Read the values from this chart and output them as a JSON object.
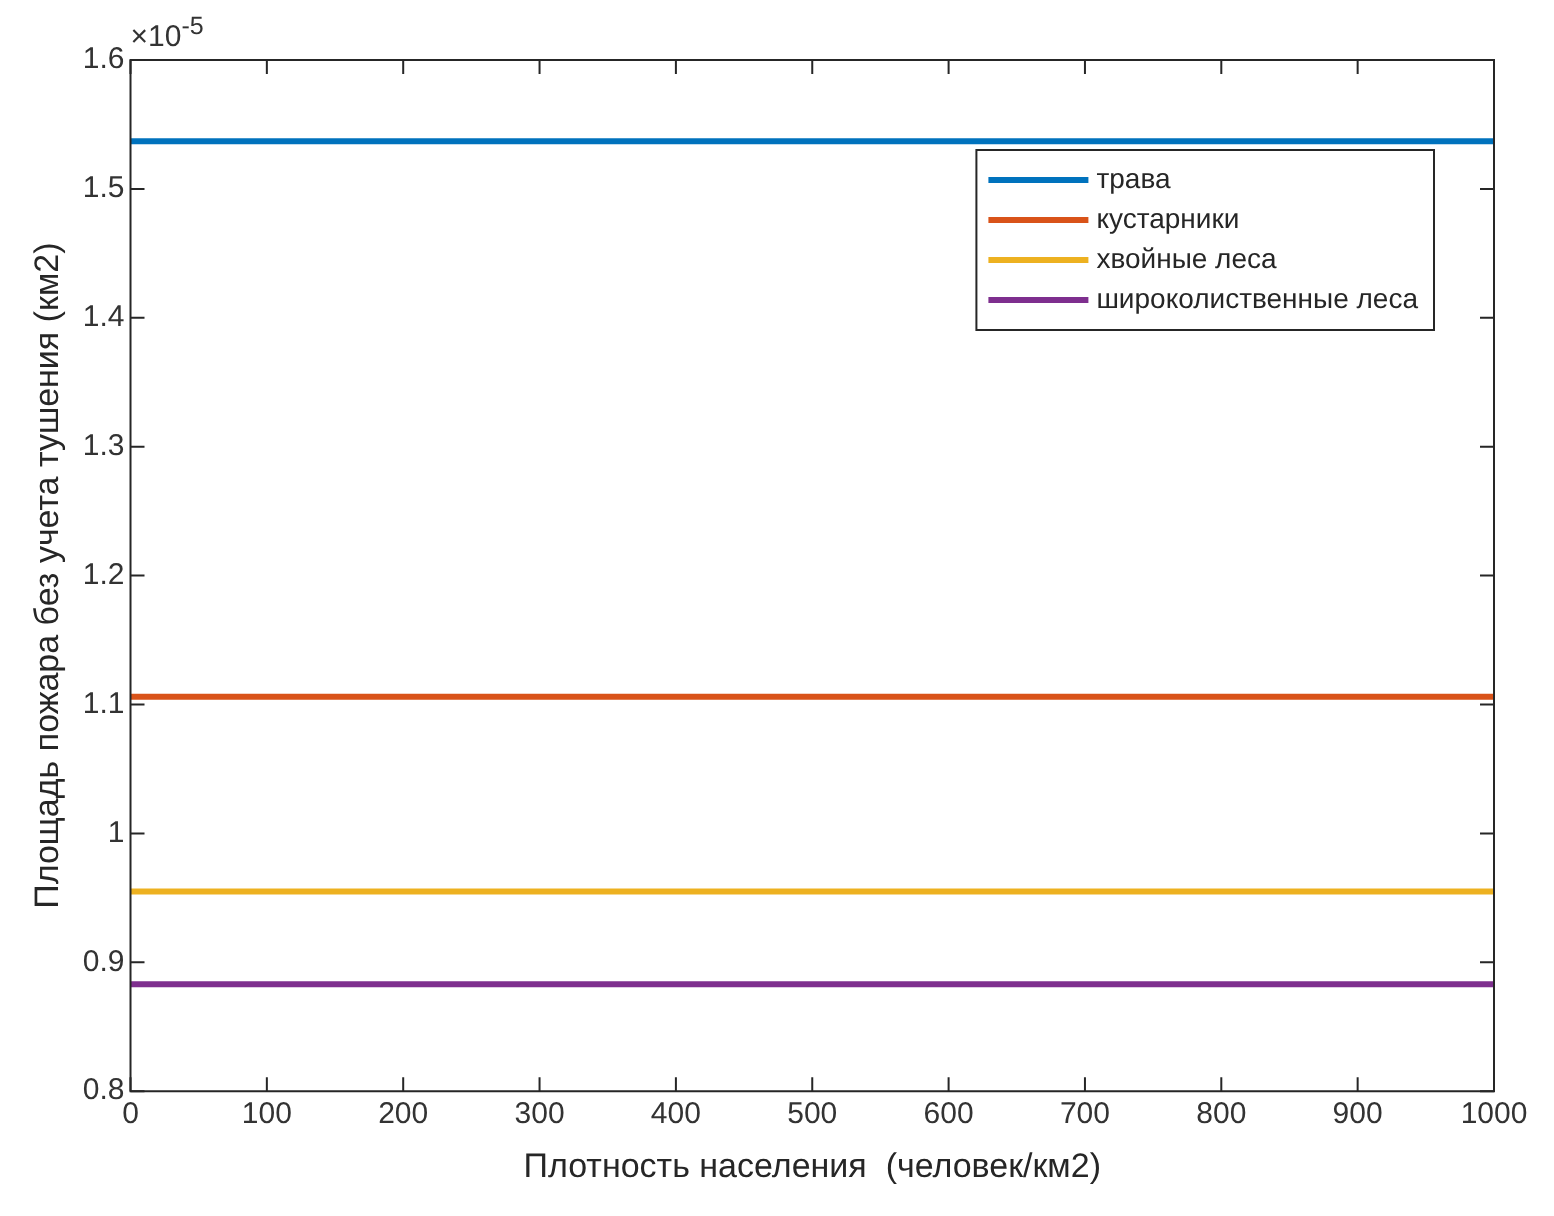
{
  "chart_data": {
    "type": "line",
    "xlabel": "Плотность населения  (человек/км2)",
    "ylabel": "Площадь пожара без учета тушения (км2)",
    "annotations": [
      "×10$^{-5}$"
    ],
    "x": [
      0,
      1000
    ],
    "series": [
      {
        "name": "трава",
        "color": "#0072bd",
        "values": [
          1.537,
          1.537
        ]
      },
      {
        "name": "кустарники",
        "color": "#d95319",
        "values": [
          1.106,
          1.106
        ]
      },
      {
        "name": "хвойные леса",
        "color": "#edb120",
        "values": [
          0.955,
          0.955
        ]
      },
      {
        "name": "широколиственные леса",
        "color": "#7e2f8e",
        "values": [
          0.883,
          0.883
        ]
      }
    ],
    "xlim": [
      0,
      1000
    ],
    "xticks": [
      0,
      100,
      200,
      300,
      400,
      500,
      600,
      700,
      800,
      900,
      1000
    ],
    "ylim": [
      0.8,
      1.6
    ],
    "yticks": [
      0.8,
      0.9,
      1,
      1.1,
      1.2,
      1.3,
      1.4,
      1.5,
      1.6
    ],
    "legend": "top right",
    "marker": "none",
    "line_style": "solid"
  }
}
